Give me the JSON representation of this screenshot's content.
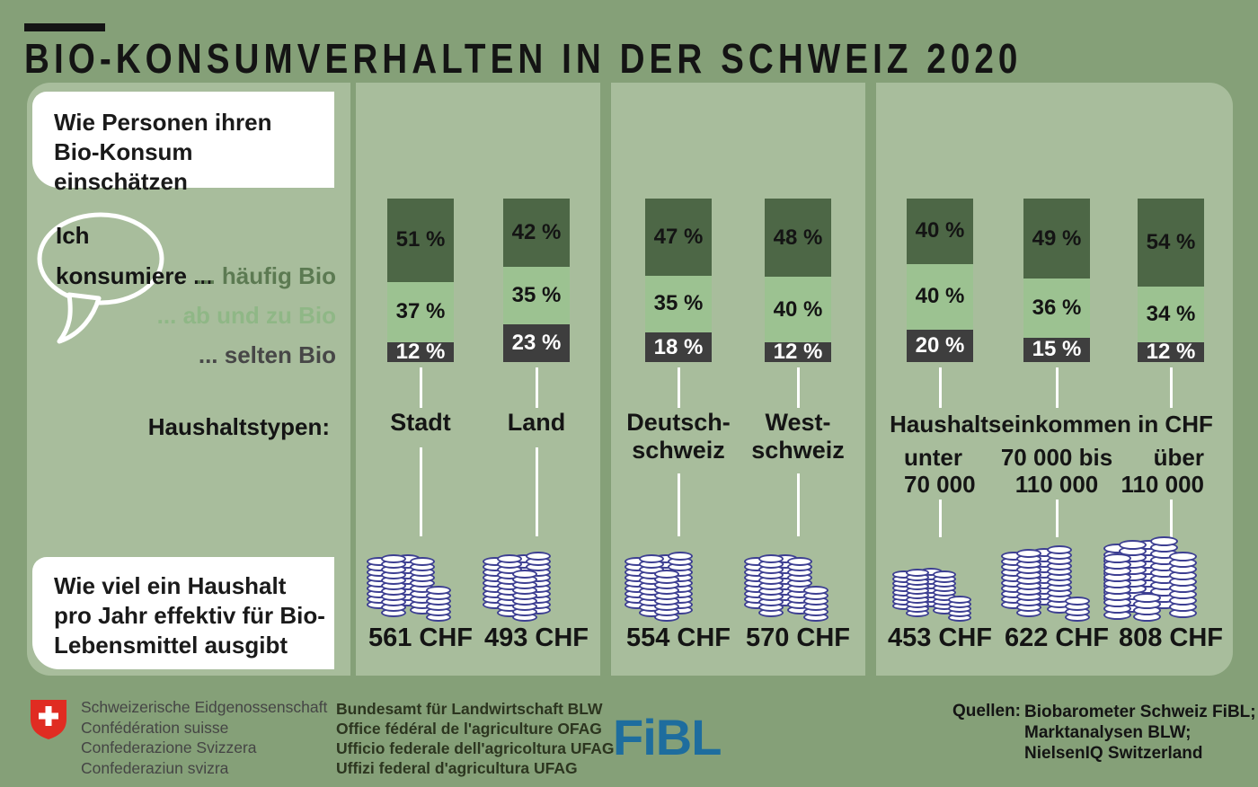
{
  "title": "BIO-KONSUMVERHALTEN IN DER SCHWEIZ 2020",
  "colors": {
    "background": "#85a078",
    "panel": "#a8bd9c",
    "seg_haufig": "#4d6746",
    "seg_abundzu": "#9cc291",
    "seg_selten": "#3e3e3e",
    "seg_label_dark": "#141414",
    "seg_label_light": "#ffffff",
    "coin_outline": "#3d3f92",
    "fibl_blue": "#1e6d9e",
    "swiss_red": "#e02c22"
  },
  "panel1": {
    "question_top": [
      "Wie Personen ihren",
      "Bio-Konsum einschätzen"
    ],
    "bubble": [
      "Ich",
      "konsumiere ..."
    ],
    "households_label": "Haushaltstypen:",
    "question_bottom": [
      "Wie viel ein Haushalt",
      "pro Jahr effektiv für Bio-",
      "Lebensmittel ausgibt"
    ]
  },
  "chart_data": {
    "type": "bar",
    "stacked_100_percent": true,
    "unit": "%",
    "title": "Bio-Konsumverhalten in der Schweiz 2020",
    "legend": [
      "... häufig Bio",
      "... ab und zu Bio",
      "... selten Bio"
    ],
    "series_names": [
      "häufig Bio",
      "ab und zu Bio",
      "selten Bio"
    ],
    "groups_label": "Haushaltstypen:",
    "income_header": "Haushaltseinkommen in CHF",
    "columns": [
      {
        "label_lines": [
          "Stadt"
        ],
        "values": [
          51,
          37,
          12
        ],
        "chf": "561 CHF",
        "coin_pile": "five_short"
      },
      {
        "label_lines": [
          "Land"
        ],
        "values": [
          42,
          35,
          23
        ],
        "chf": "493 CHF",
        "coin_pile": "five"
      },
      {
        "label_lines": [
          "Deutsch-",
          "schweiz"
        ],
        "values": [
          47,
          35,
          18
        ],
        "chf": "554 CHF",
        "coin_pile": "five"
      },
      {
        "label_lines": [
          "West-",
          "schweiz"
        ],
        "values": [
          48,
          40,
          12
        ],
        "chf": "570 CHF",
        "coin_pile": "five_short"
      },
      {
        "label_lines": [
          "unter",
          "70 000"
        ],
        "values": [
          40,
          40,
          20
        ],
        "chf": "453 CHF",
        "coin_pile": "small"
      },
      {
        "label_lines": [
          "70 000 bis",
          "110 000"
        ],
        "values": [
          49,
          36,
          15
        ],
        "chf": "622 CHF",
        "coin_pile": "large"
      },
      {
        "label_lines": [
          "über",
          "110 000"
        ],
        "values": [
          54,
          34,
          12
        ],
        "chf": "808 CHF",
        "coin_pile": "xlarge"
      }
    ]
  },
  "footer": {
    "coat_lines": [
      "Schweizerische Eidgenossenschaft",
      "Confédération suisse",
      "Confederazione Svizzera",
      "Confederaziun svizra"
    ],
    "office_lines": [
      "Bundesamt für Landwirtschaft BLW",
      "Office fédéral de l'agriculture OFAG",
      "Ufficio federale dell'agricoltura UFAG",
      "Uffizi federal d'agricultura UFAG"
    ],
    "fibl_logo": "FiBL",
    "quellen_label": "Quellen:",
    "source_lines": [
      "Biobarometer Schweiz FiBL;",
      "Marktanalysen BLW;",
      "NielsenIQ Switzerland"
    ]
  }
}
